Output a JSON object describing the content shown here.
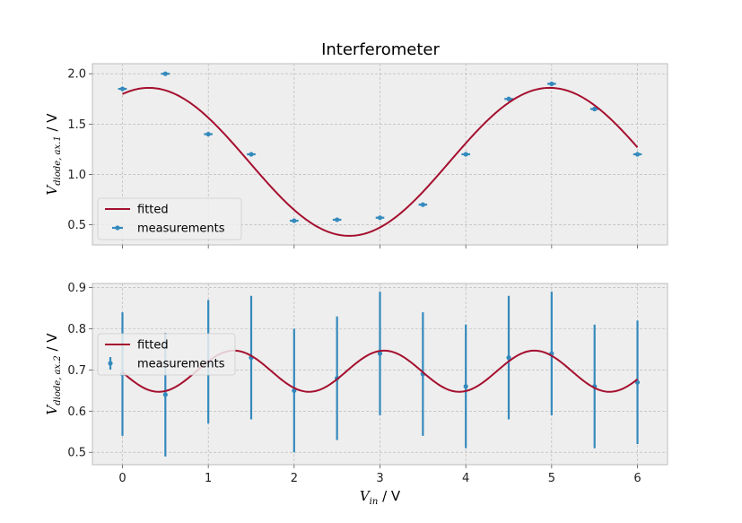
{
  "chart_data": [
    {
      "type": "line",
      "title": "Interferometer",
      "xlabel": "",
      "ylabel_main": "V",
      "ylabel_sub": "diode, ax.1",
      "ylabel_unit": " / V",
      "xlim": [
        -0.35,
        6.35
      ],
      "ylim": [
        0.3,
        2.1
      ],
      "xticks": [
        0,
        1,
        2,
        3,
        4,
        5,
        6
      ],
      "xtick_labels_visible": false,
      "yticks": [
        0.5,
        1.0,
        1.5,
        2.0
      ],
      "ytick_labels": [
        "0.5",
        "1.0",
        "1.5",
        "2.0"
      ],
      "grid": true,
      "legend_placement": "lower-left",
      "legend": [
        "fitted",
        "measurements"
      ],
      "colors": {
        "fitted": "#a50f2e",
        "measurements": "#348abd"
      },
      "fit": {
        "model": "A*sin(k*x+phi)+c",
        "A": 0.735,
        "k": 1.345,
        "phi": 1.158,
        "c": 1.125,
        "x_range": [
          0,
          6
        ]
      },
      "measurements": {
        "x": [
          0,
          0.5,
          1,
          1.5,
          2,
          2.5,
          3,
          3.5,
          4,
          4.5,
          5,
          5.5,
          6
        ],
        "y": [
          1.85,
          2.0,
          1.4,
          1.2,
          0.54,
          0.55,
          0.57,
          0.7,
          1.2,
          1.75,
          1.9,
          1.65,
          1.2
        ],
        "xerr": 0.05,
        "yerr": 0.01
      }
    },
    {
      "type": "line",
      "title": "",
      "xlabel_main": "V",
      "xlabel_sub": "in",
      "xlabel_unit": " / V",
      "ylabel_main": "V",
      "ylabel_sub": "diode, ax.2",
      "ylabel_unit": " / V",
      "xlim": [
        -0.35,
        6.35
      ],
      "ylim": [
        0.47,
        0.91
      ],
      "xticks": [
        0,
        1,
        2,
        3,
        4,
        5,
        6
      ],
      "xtick_labels": [
        "0",
        "1",
        "2",
        "3",
        "4",
        "5",
        "6"
      ],
      "yticks": [
        0.5,
        0.6,
        0.7,
        0.8,
        0.9
      ],
      "ytick_labels": [
        "0.5",
        "0.6",
        "0.7",
        "0.8",
        "0.9"
      ],
      "grid": true,
      "legend_placement": "center-left",
      "legend": [
        "fitted",
        "measurements"
      ],
      "colors": {
        "fitted": "#a50f2e",
        "measurements": "#348abd"
      },
      "fit": {
        "model": "A*sin(k*x+phi)+c",
        "A": 0.05,
        "k": 3.59,
        "phi": -3.09,
        "c": 0.697,
        "x_range": [
          0,
          6
        ]
      },
      "measurements": {
        "x": [
          0,
          0.5,
          1,
          1.5,
          2,
          2.5,
          3,
          3.5,
          4,
          4.5,
          5,
          5.5,
          6
        ],
        "y": [
          0.69,
          0.64,
          0.72,
          0.73,
          0.65,
          0.68,
          0.74,
          0.69,
          0.66,
          0.73,
          0.74,
          0.66,
          0.67
        ],
        "xerr": 0.0,
        "yerr": [
          0.15,
          0.15,
          0.15,
          0.15,
          0.15,
          0.15,
          0.15,
          0.15,
          0.15,
          0.15,
          0.15,
          0.15,
          0.15
        ]
      }
    }
  ]
}
